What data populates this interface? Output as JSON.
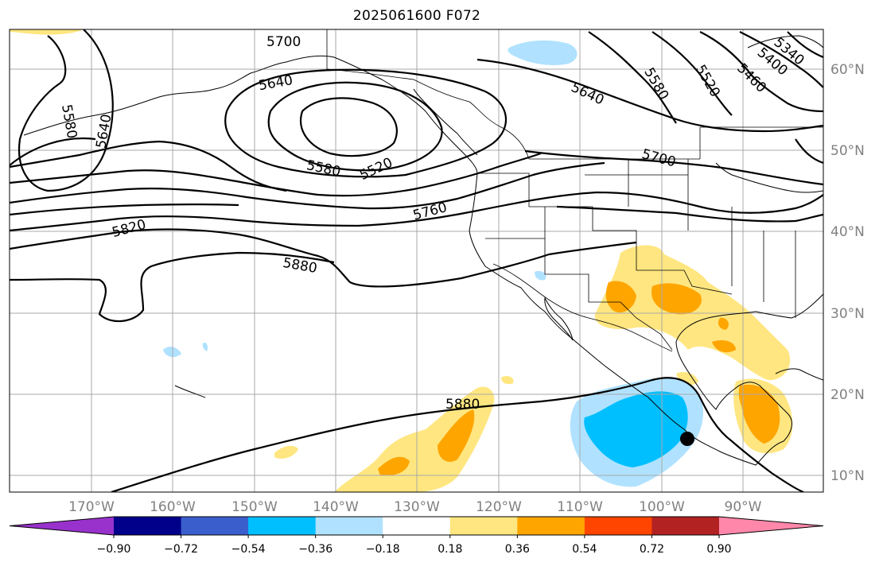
{
  "title": "2025061600 F072",
  "latitude_labels": [
    "60°N",
    "50°N",
    "40°N",
    "30°N",
    "20°N",
    "10°N"
  ],
  "longitude_labels": [
    "170°W",
    "160°W",
    "150°W",
    "140°W",
    "130°W",
    "120°W",
    "110°W",
    "100°W",
    "90°W"
  ],
  "contour_labels": [
    "5700",
    "5640",
    "5580",
    "5640",
    "5580",
    "5520",
    "5640",
    "5580",
    "5520",
    "5460",
    "5400",
    "5340",
    "5700",
    "5760",
    "5820",
    "5880",
    "5880"
  ],
  "colorbar": {
    "tick_labels": [
      "−0.90",
      "−0.72",
      "−0.54",
      "−0.36",
      "−0.18",
      "0.18",
      "0.36",
      "0.54",
      "0.72",
      "0.90"
    ],
    "colors": [
      "#9932cc",
      "#00008b",
      "#3a5fcd",
      "#00bfff",
      "#b0e2ff",
      "#ffffff",
      "#ffe680",
      "#ffa500",
      "#ff4500",
      "#b22222",
      "#ff88aa"
    ]
  },
  "colors": {
    "grid": "#a9a9a9",
    "contour": "#000000",
    "tick_label": "#808080"
  }
}
